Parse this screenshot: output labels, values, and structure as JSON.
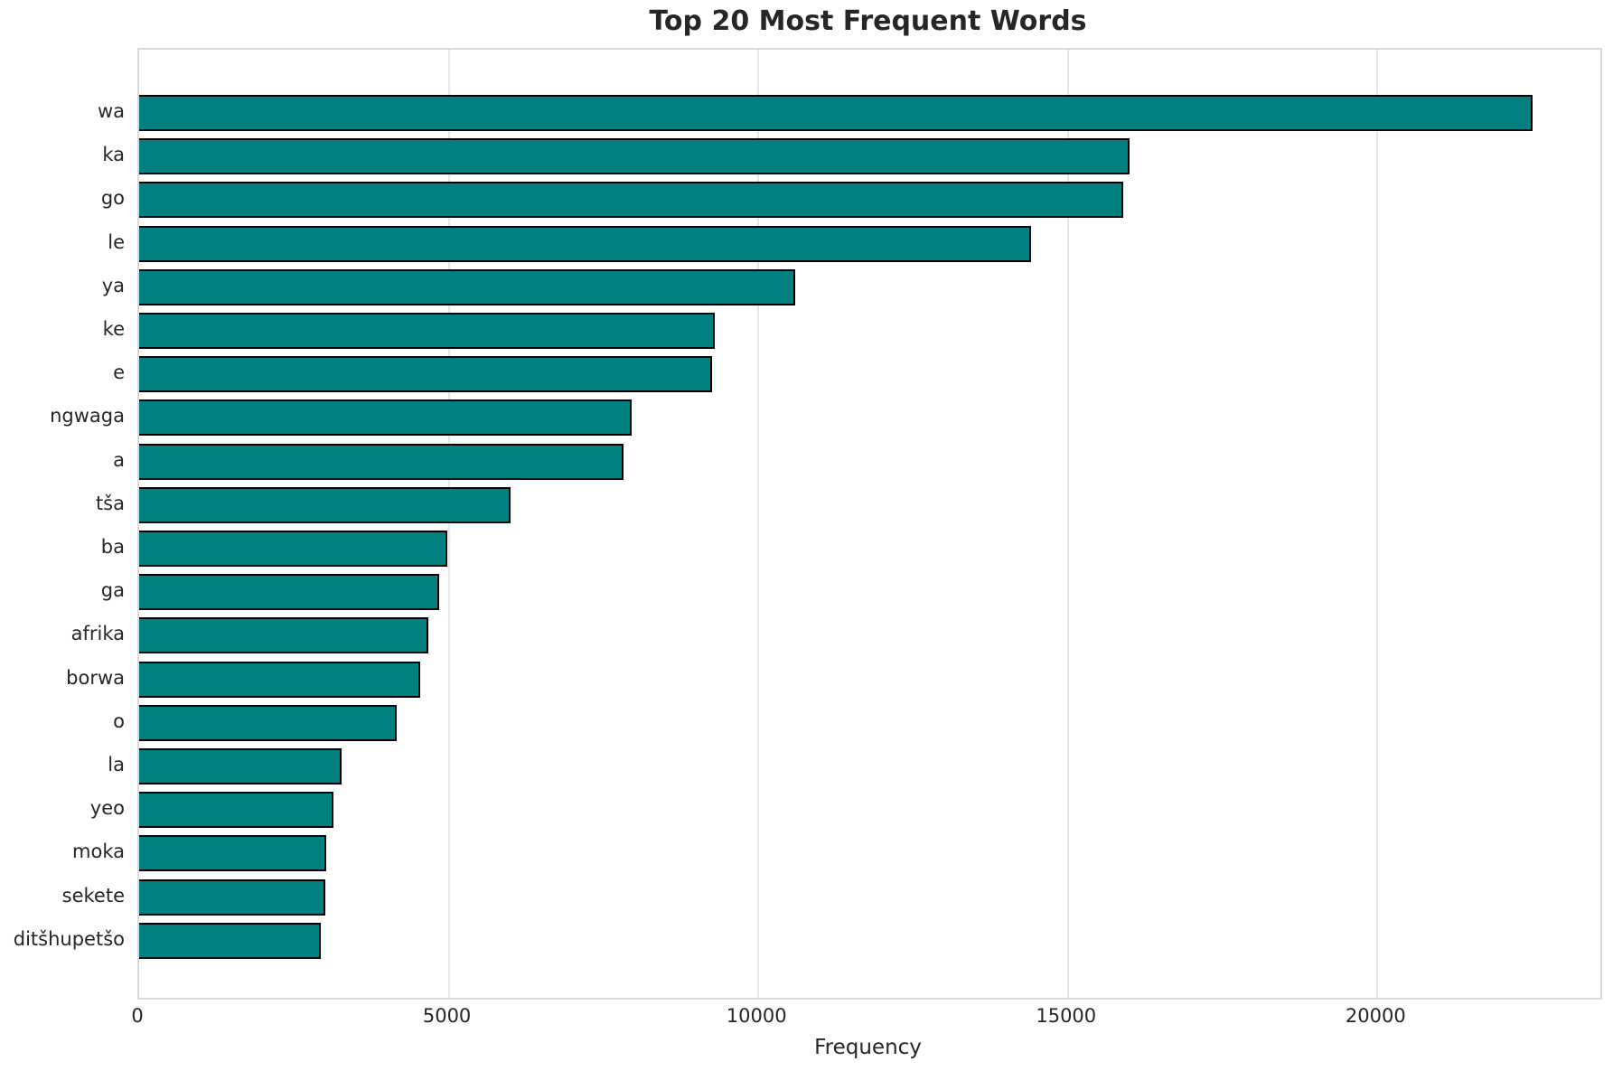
{
  "title": "Top 20 Most Frequent Words",
  "chart_data": {
    "type": "bar",
    "orientation": "horizontal",
    "title": "Top 20 Most Frequent Words",
    "xlabel": "Frequency",
    "ylabel": "",
    "categories": [
      "wa",
      "ka",
      "go",
      "le",
      "ya",
      "ke",
      "e",
      "ngwaga",
      "a",
      "tša",
      "ba",
      "ga",
      "afrika",
      "borwa",
      "o",
      "la",
      "yeo",
      "moka",
      "sekete",
      "ditšhupetšo"
    ],
    "values": [
      22500,
      16000,
      15900,
      14400,
      10600,
      9290,
      9260,
      7960,
      7830,
      6000,
      4980,
      4850,
      4670,
      4540,
      4160,
      3270,
      3140,
      3020,
      3000,
      2940
    ],
    "xticks": [
      0,
      5000,
      10000,
      15000,
      20000
    ],
    "xlim": [
      0,
      23600
    ],
    "grid": "vertical",
    "legend": "none",
    "colors": {
      "bar_fill": "#008080",
      "bar_edge": "#000000",
      "gridline": "#e7e7e7",
      "spine": "#d9d9d9",
      "text": "#262626",
      "background": "#ffffff"
    }
  }
}
